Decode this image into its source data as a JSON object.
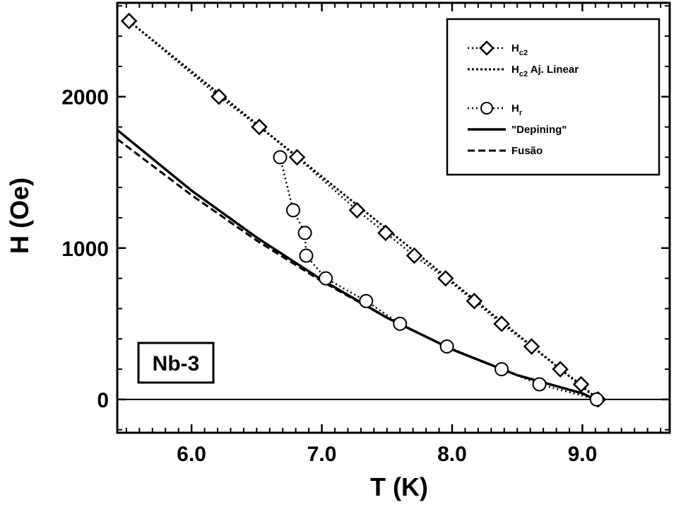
{
  "chart_data": {
    "type": "scatter",
    "title": "",
    "xlabel": "T (K)",
    "ylabel": "H (Oe)",
    "xlim": [
      5.43,
      9.67
    ],
    "ylim": [
      -220,
      2620
    ],
    "x_ticks": [
      6.0,
      7.0,
      8.0,
      9.0
    ],
    "x_tick_labels": [
      "6.0",
      "7.0",
      "8.0",
      "9.0"
    ],
    "y_ticks": [
      0,
      1000,
      2000
    ],
    "y_tick_labels": [
      "0",
      "1000",
      "2000"
    ],
    "grid": false,
    "legend_position": "top-right",
    "annotation": "Nb-3",
    "zero_line": 0,
    "series": [
      {
        "name": "Hc2",
        "name_main": "H",
        "name_sub": "c2",
        "marker": "diamond",
        "line": "dotted",
        "x": [
          5.52,
          6.21,
          6.52,
          6.81,
          7.27,
          7.49,
          7.71,
          7.95,
          8.17,
          8.38,
          8.61,
          8.83,
          8.99,
          9.12
        ],
        "y": [
          2500,
          2000,
          1800,
          1600,
          1250,
          1100,
          950,
          800,
          650,
          500,
          350,
          200,
          100,
          0
        ]
      },
      {
        "name": "Hc2 Aj. Linear",
        "name_main": "H",
        "name_sub": "c2",
        "name_suffix": " Aj. Linear",
        "line": "short-dash",
        "x": [
          5.52,
          9.12
        ],
        "y": [
          2500,
          0
        ]
      },
      {
        "name": "Hr",
        "name_main": "H",
        "name_sub": "r",
        "marker": "circle",
        "line": "dotted",
        "x": [
          6.68,
          6.78,
          6.87,
          6.88,
          7.03,
          7.34,
          7.6,
          7.96,
          8.38,
          8.67,
          9.11
        ],
        "y": [
          1600,
          1250,
          1100,
          950,
          800,
          650,
          500,
          350,
          200,
          100,
          0
        ]
      },
      {
        "name": "\"Depining\"",
        "line": "solid",
        "x": [
          5.43,
          6.0,
          6.5,
          7.0,
          7.5,
          8.0,
          8.5,
          9.0,
          9.1
        ],
        "y": [
          1780,
          1380,
          1070,
          790,
          540,
          330,
          160,
          40,
          0
        ]
      },
      {
        "name": "Fusão",
        "line": "dashed",
        "x": [
          5.43,
          6.0,
          6.5,
          7.0,
          7.5,
          8.0,
          8.5,
          9.0,
          9.1
        ],
        "y": [
          1720,
          1350,
          1050,
          780,
          540,
          330,
          160,
          40,
          0
        ]
      }
    ]
  }
}
